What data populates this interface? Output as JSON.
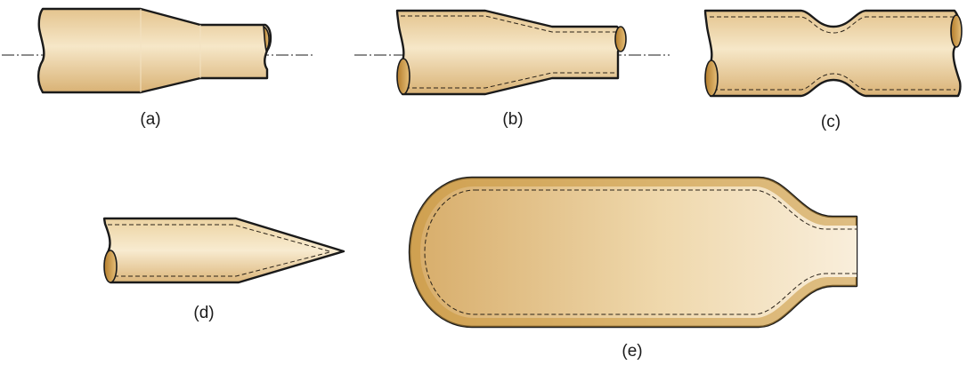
{
  "figure": {
    "panels": [
      {
        "id": "a",
        "label": "(a)"
      },
      {
        "id": "b",
        "label": "(b)"
      },
      {
        "id": "c",
        "label": "(c)"
      },
      {
        "id": "d",
        "label": "(d)"
      },
      {
        "id": "e",
        "label": "(e)"
      }
    ]
  },
  "colors": {
    "metal_light": "#f6e6c6",
    "metal_mid": "#e8c994",
    "metal_dark": "#c89a52",
    "wall": "#c8963a",
    "outline": "#1a1a1a"
  }
}
